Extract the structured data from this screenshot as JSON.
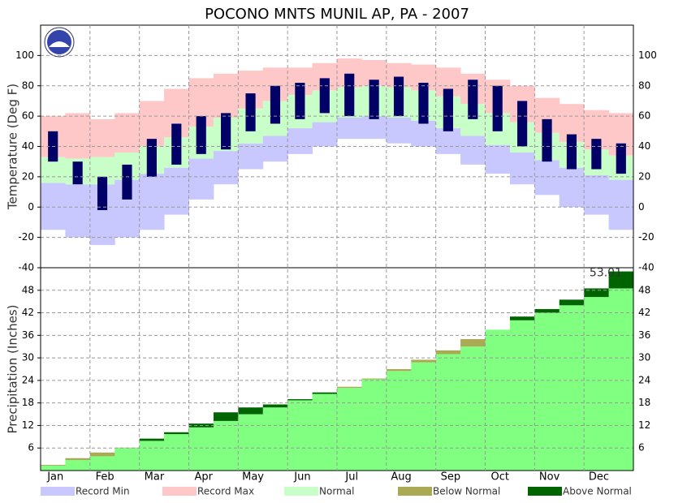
{
  "title": "POCONO MNTS MUNIL AP, PA - 2007",
  "legend": [
    {
      "name": "Record Min",
      "color": "#c8c8ff"
    },
    {
      "name": "Record Max",
      "color": "#ffc8c8"
    },
    {
      "name": "Normal",
      "color": "#c8ffc8"
    },
    {
      "name": "Below Normal",
      "color": "#aaaa55"
    },
    {
      "name": "Above Normal",
      "color": "#006400"
    }
  ],
  "chart_data": [
    {
      "type": "temperature-band",
      "ylabel": "Temperature (Deg F)",
      "categories": [
        "Jan",
        null,
        "Feb",
        null,
        "Mar",
        null,
        "Apr",
        null,
        "May",
        null,
        "Jun",
        null,
        "Jul",
        null,
        "Aug",
        null,
        "Sep",
        null,
        "Oct",
        null,
        "Nov",
        null,
        "Dec",
        null
      ],
      "record_min": [
        -15,
        -20,
        -25,
        -20,
        -15,
        -5,
        5,
        15,
        25,
        30,
        35,
        40,
        45,
        45,
        42,
        40,
        35,
        28,
        22,
        15,
        8,
        0,
        -5,
        -15
      ],
      "normal_low": [
        16,
        15,
        15,
        18,
        22,
        26,
        32,
        37,
        42,
        47,
        52,
        56,
        59,
        60,
        59,
        57,
        52,
        47,
        41,
        36,
        31,
        26,
        21,
        18
      ],
      "normal_high": [
        33,
        32,
        33,
        36,
        40,
        46,
        53,
        59,
        65,
        70,
        74,
        77,
        79,
        80,
        79,
        77,
        73,
        68,
        62,
        56,
        49,
        43,
        38,
        34
      ],
      "record_max": [
        60,
        62,
        58,
        62,
        70,
        78,
        85,
        88,
        90,
        92,
        92,
        95,
        98,
        97,
        95,
        94,
        92,
        88,
        84,
        80,
        72,
        68,
        64,
        62
      ],
      "observed_low": [
        30,
        15,
        -2,
        5,
        20,
        28,
        35,
        38,
        50,
        55,
        58,
        62,
        60,
        58,
        60,
        55,
        50,
        58,
        50,
        40,
        30,
        25,
        25,
        22
      ],
      "observed_high": [
        50,
        30,
        20,
        28,
        45,
        55,
        60,
        62,
        75,
        80,
        82,
        85,
        88,
        84,
        86,
        82,
        78,
        84,
        80,
        70,
        58,
        48,
        45,
        42
      ],
      "observed_color": "#000066",
      "ylim": [
        -40,
        120
      ],
      "yticks": [
        -40,
        -20,
        0,
        20,
        40,
        60,
        80,
        100
      ],
      "grid": true
    },
    {
      "type": "precip-cumulative",
      "ylabel": "Precipitation (Inches)",
      "normal": [
        1.5,
        3.3,
        4.8,
        6.1,
        7.9,
        9.7,
        11.5,
        13.2,
        15.0,
        16.8,
        18.7,
        20.4,
        22.3,
        24.5,
        27,
        29.5,
        32,
        35,
        37.5,
        40,
        42,
        44,
        46.2,
        48.5
      ],
      "observed": [
        1.3,
        2.8,
        3.8,
        6,
        8.5,
        10.2,
        12.5,
        15.5,
        16.8,
        17.6,
        19,
        20.8,
        22,
        24.3,
        26.5,
        28.8,
        31,
        33,
        37.5,
        41,
        43,
        45.5,
        48.5,
        53.01
      ],
      "observed_color": "#80ff80",
      "annotation": "53.01",
      "ylim": [
        0,
        54
      ],
      "yticks": [
        6,
        12,
        18,
        24,
        30,
        36,
        42,
        48
      ],
      "grid": true
    }
  ]
}
